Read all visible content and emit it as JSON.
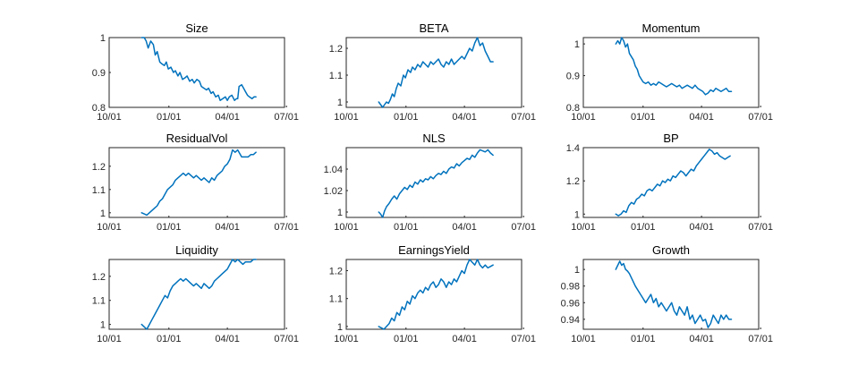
{
  "figure": {
    "line_color": "#0072BD"
  },
  "chart_data": [
    {
      "type": "line",
      "title": "Size",
      "xlabel": "",
      "ylabel": "",
      "xlim": [
        0,
        270
      ],
      "ylim": [
        0.8,
        1.0
      ],
      "xticks": [
        {
          "pos": 0,
          "label": "10/01"
        },
        {
          "pos": 92,
          "label": "01/01"
        },
        {
          "pos": 182,
          "label": "04/01"
        },
        {
          "pos": 273,
          "label": "07/01"
        }
      ],
      "yticks": [
        {
          "value": 0.8,
          "label": "0.8"
        },
        {
          "value": 0.9,
          "label": "0.9"
        },
        {
          "value": 1.0,
          "label": "1"
        }
      ],
      "x": [
        50,
        54,
        57,
        60,
        64,
        68,
        71,
        74,
        78,
        81,
        85,
        88,
        91,
        95,
        99,
        102,
        106,
        109,
        113,
        117,
        120,
        124,
        128,
        131,
        135,
        139,
        142,
        146,
        150,
        153,
        157,
        160,
        164,
        168,
        171,
        175,
        179,
        182,
        185,
        189,
        193,
        196,
        198,
        200,
        204,
        207,
        210,
        213,
        216,
        220,
        223,
        226
      ],
      "y": [
        1.0,
        1.0,
        0.99,
        0.97,
        0.99,
        0.98,
        0.95,
        0.96,
        0.93,
        0.925,
        0.92,
        0.93,
        0.91,
        0.915,
        0.9,
        0.905,
        0.89,
        0.9,
        0.88,
        0.885,
        0.89,
        0.875,
        0.88,
        0.87,
        0.88,
        0.875,
        0.86,
        0.855,
        0.85,
        0.855,
        0.84,
        0.845,
        0.83,
        0.835,
        0.82,
        0.825,
        0.83,
        0.82,
        0.83,
        0.835,
        0.82,
        0.825,
        0.825,
        0.86,
        0.865,
        0.855,
        0.845,
        0.835,
        0.83,
        0.825,
        0.83,
        0.83
      ]
    },
    {
      "type": "line",
      "title": "BETA",
      "xlabel": "",
      "ylabel": "",
      "xlim": [
        0,
        270
      ],
      "ylim": [
        0.98,
        1.24
      ],
      "xticks": [
        {
          "pos": 0,
          "label": "10/01"
        },
        {
          "pos": 92,
          "label": "01/01"
        },
        {
          "pos": 182,
          "label": "04/01"
        },
        {
          "pos": 273,
          "label": "07/01"
        }
      ],
      "yticks": [
        {
          "value": 1.0,
          "label": "1"
        },
        {
          "value": 1.1,
          "label": "1.1"
        },
        {
          "value": 1.2,
          "label": "1.2"
        }
      ],
      "x": [
        50,
        53,
        56,
        59,
        62,
        65,
        68,
        71,
        74,
        77,
        80,
        84,
        88,
        91,
        95,
        99,
        102,
        106,
        110,
        114,
        118,
        122,
        126,
        130,
        134,
        138,
        142,
        146,
        150,
        154,
        158,
        162,
        166,
        170,
        174,
        178,
        182,
        186,
        190,
        194,
        198,
        202,
        206,
        210,
        214,
        218,
        222,
        226
      ],
      "y": [
        1.0,
        0.99,
        0.98,
        0.99,
        1.0,
        0.995,
        1.01,
        1.03,
        1.02,
        1.05,
        1.07,
        1.06,
        1.1,
        1.09,
        1.12,
        1.11,
        1.13,
        1.12,
        1.14,
        1.13,
        1.15,
        1.14,
        1.13,
        1.15,
        1.14,
        1.15,
        1.16,
        1.14,
        1.13,
        1.15,
        1.14,
        1.16,
        1.14,
        1.15,
        1.16,
        1.17,
        1.16,
        1.18,
        1.2,
        1.19,
        1.22,
        1.24,
        1.21,
        1.22,
        1.19,
        1.17,
        1.15,
        1.15
      ]
    },
    {
      "type": "line",
      "title": "Momentum",
      "xlabel": "",
      "ylabel": "",
      "xlim": [
        0,
        270
      ],
      "ylim": [
        0.8,
        1.02
      ],
      "xticks": [
        {
          "pos": 0,
          "label": "10/01"
        },
        {
          "pos": 92,
          "label": "01/01"
        },
        {
          "pos": 182,
          "label": "04/01"
        },
        {
          "pos": 273,
          "label": "07/01"
        }
      ],
      "yticks": [
        {
          "value": 0.8,
          "label": "0.8"
        },
        {
          "value": 0.9,
          "label": "0.9"
        },
        {
          "value": 1.0,
          "label": "1"
        }
      ],
      "x": [
        50,
        53,
        56,
        59,
        62,
        65,
        68,
        71,
        74,
        77,
        80,
        83,
        86,
        89,
        92,
        96,
        100,
        104,
        108,
        112,
        116,
        120,
        124,
        128,
        132,
        136,
        140,
        144,
        148,
        152,
        156,
        160,
        164,
        168,
        172,
        176,
        180,
        184,
        188,
        192,
        196,
        200,
        204,
        208,
        212,
        216,
        220,
        224,
        228
      ],
      "y": [
        1.0,
        1.01,
        1.0,
        1.02,
        1.01,
        0.99,
        1.0,
        0.97,
        0.96,
        0.95,
        0.93,
        0.92,
        0.9,
        0.89,
        0.88,
        0.875,
        0.88,
        0.87,
        0.875,
        0.87,
        0.88,
        0.875,
        0.87,
        0.865,
        0.87,
        0.875,
        0.87,
        0.865,
        0.87,
        0.86,
        0.865,
        0.87,
        0.865,
        0.86,
        0.87,
        0.86,
        0.855,
        0.85,
        0.84,
        0.845,
        0.855,
        0.85,
        0.86,
        0.855,
        0.85,
        0.855,
        0.86,
        0.85,
        0.85
      ]
    },
    {
      "type": "line",
      "title": "ResidualVol",
      "xlabel": "",
      "ylabel": "",
      "xlim": [
        0,
        270
      ],
      "ylim": [
        0.98,
        1.28
      ],
      "xticks": [
        {
          "pos": 0,
          "label": "10/01"
        },
        {
          "pos": 92,
          "label": "01/01"
        },
        {
          "pos": 182,
          "label": "04/01"
        },
        {
          "pos": 273,
          "label": "07/01"
        }
      ],
      "yticks": [
        {
          "value": 1.0,
          "label": "1"
        },
        {
          "value": 1.1,
          "label": "1.1"
        },
        {
          "value": 1.2,
          "label": "1.2"
        }
      ],
      "x": [
        50,
        54,
        58,
        62,
        66,
        70,
        74,
        78,
        82,
        86,
        90,
        94,
        98,
        102,
        106,
        110,
        114,
        118,
        122,
        126,
        130,
        134,
        138,
        142,
        146,
        150,
        154,
        158,
        162,
        166,
        170,
        174,
        178,
        182,
        186,
        190,
        194,
        198,
        202,
        204,
        206,
        210,
        214,
        218,
        222,
        226
      ],
      "y": [
        1.0,
        0.995,
        0.99,
        1.0,
        1.01,
        1.02,
        1.03,
        1.05,
        1.06,
        1.08,
        1.1,
        1.11,
        1.12,
        1.14,
        1.15,
        1.16,
        1.17,
        1.16,
        1.17,
        1.16,
        1.15,
        1.16,
        1.15,
        1.14,
        1.15,
        1.14,
        1.13,
        1.15,
        1.14,
        1.16,
        1.17,
        1.18,
        1.2,
        1.21,
        1.23,
        1.27,
        1.26,
        1.27,
        1.25,
        1.24,
        1.24,
        1.24,
        1.24,
        1.25,
        1.25,
        1.26
      ]
    },
    {
      "type": "line",
      "title": "NLS",
      "xlabel": "",
      "ylabel": "",
      "xlim": [
        0,
        270
      ],
      "ylim": [
        0.995,
        1.06
      ],
      "xticks": [
        {
          "pos": 0,
          "label": "10/01"
        },
        {
          "pos": 92,
          "label": "01/01"
        },
        {
          "pos": 182,
          "label": "04/01"
        },
        {
          "pos": 273,
          "label": "07/01"
        }
      ],
      "yticks": [
        {
          "value": 1.0,
          "label": "1"
        },
        {
          "value": 1.02,
          "label": "1.02"
        },
        {
          "value": 1.04,
          "label": "1.04"
        }
      ],
      "x": [
        50,
        53,
        56,
        59,
        62,
        66,
        70,
        74,
        78,
        82,
        86,
        90,
        94,
        98,
        102,
        106,
        110,
        114,
        118,
        122,
        126,
        130,
        134,
        138,
        142,
        146,
        150,
        154,
        158,
        162,
        166,
        170,
        174,
        178,
        182,
        186,
        190,
        194,
        198,
        202,
        206,
        210,
        214,
        218,
        222,
        226
      ],
      "y": [
        1.0,
        0.998,
        0.995,
        1.001,
        1.005,
        1.008,
        1.012,
        1.015,
        1.012,
        1.017,
        1.02,
        1.023,
        1.021,
        1.025,
        1.023,
        1.028,
        1.026,
        1.03,
        1.028,
        1.031,
        1.03,
        1.033,
        1.031,
        1.034,
        1.036,
        1.035,
        1.038,
        1.036,
        1.04,
        1.042,
        1.041,
        1.045,
        1.043,
        1.046,
        1.048,
        1.05,
        1.049,
        1.053,
        1.051,
        1.055,
        1.058,
        1.057,
        1.056,
        1.058,
        1.055,
        1.053
      ]
    },
    {
      "type": "line",
      "title": "BP",
      "xlabel": "",
      "ylabel": "",
      "xlim": [
        0,
        270
      ],
      "ylim": [
        0.98,
        1.4
      ],
      "xticks": [
        {
          "pos": 0,
          "label": "10/01"
        },
        {
          "pos": 92,
          "label": "01/01"
        },
        {
          "pos": 182,
          "label": "04/01"
        },
        {
          "pos": 273,
          "label": "07/01"
        }
      ],
      "yticks": [
        {
          "value": 1.0,
          "label": "1"
        },
        {
          "value": 1.2,
          "label": "1.2"
        },
        {
          "value": 1.4,
          "label": "1.4"
        }
      ],
      "x": [
        50,
        54,
        58,
        62,
        66,
        70,
        74,
        78,
        82,
        86,
        90,
        94,
        98,
        102,
        106,
        110,
        114,
        118,
        122,
        126,
        130,
        134,
        138,
        142,
        146,
        150,
        154,
        158,
        162,
        166,
        170,
        174,
        178,
        182,
        186,
        190,
        194,
        198,
        202,
        206,
        210,
        214,
        218,
        222,
        226
      ],
      "y": [
        1.0,
        0.99,
        1.0,
        1.02,
        1.01,
        1.05,
        1.07,
        1.06,
        1.09,
        1.1,
        1.12,
        1.11,
        1.14,
        1.15,
        1.14,
        1.16,
        1.18,
        1.17,
        1.2,
        1.19,
        1.21,
        1.2,
        1.23,
        1.22,
        1.24,
        1.26,
        1.25,
        1.23,
        1.25,
        1.27,
        1.26,
        1.29,
        1.31,
        1.33,
        1.35,
        1.37,
        1.39,
        1.38,
        1.36,
        1.37,
        1.35,
        1.34,
        1.33,
        1.34,
        1.35
      ]
    },
    {
      "type": "line",
      "title": "Liquidity",
      "xlabel": "",
      "ylabel": "",
      "xlim": [
        0,
        270
      ],
      "ylim": [
        0.98,
        1.27
      ],
      "xticks": [
        {
          "pos": 0,
          "label": "10/01"
        },
        {
          "pos": 92,
          "label": "01/01"
        },
        {
          "pos": 182,
          "label": "04/01"
        },
        {
          "pos": 273,
          "label": "07/01"
        }
      ],
      "yticks": [
        {
          "value": 1.0,
          "label": "1"
        },
        {
          "value": 1.1,
          "label": "1.1"
        },
        {
          "value": 1.2,
          "label": "1.2"
        }
      ],
      "x": [
        50,
        54,
        58,
        62,
        66,
        70,
        74,
        78,
        82,
        86,
        90,
        94,
        98,
        102,
        106,
        110,
        114,
        118,
        122,
        126,
        130,
        134,
        138,
        142,
        146,
        150,
        154,
        158,
        162,
        166,
        170,
        174,
        178,
        182,
        186,
        190,
        194,
        198,
        202,
        206,
        210,
        214,
        218,
        222,
        226
      ],
      "y": [
        1.0,
        0.99,
        0.98,
        1.0,
        1.02,
        1.04,
        1.06,
        1.08,
        1.1,
        1.12,
        1.11,
        1.14,
        1.16,
        1.17,
        1.18,
        1.19,
        1.18,
        1.19,
        1.18,
        1.17,
        1.16,
        1.17,
        1.16,
        1.15,
        1.17,
        1.16,
        1.15,
        1.16,
        1.18,
        1.19,
        1.2,
        1.21,
        1.22,
        1.23,
        1.25,
        1.27,
        1.26,
        1.27,
        1.26,
        1.25,
        1.26,
        1.26,
        1.26,
        1.27,
        1.27
      ]
    },
    {
      "type": "line",
      "title": "EarningsYield",
      "xlabel": "",
      "ylabel": "",
      "xlim": [
        0,
        270
      ],
      "ylim": [
        0.99,
        1.24
      ],
      "xticks": [
        {
          "pos": 0,
          "label": "10/01"
        },
        {
          "pos": 92,
          "label": "01/01"
        },
        {
          "pos": 182,
          "label": "04/01"
        },
        {
          "pos": 273,
          "label": "07/01"
        }
      ],
      "yticks": [
        {
          "value": 1.0,
          "label": "1"
        },
        {
          "value": 1.1,
          "label": "1.1"
        },
        {
          "value": 1.2,
          "label": "1.2"
        }
      ],
      "x": [
        50,
        54,
        58,
        62,
        66,
        70,
        74,
        78,
        82,
        86,
        90,
        94,
        98,
        102,
        106,
        110,
        114,
        118,
        122,
        126,
        130,
        134,
        138,
        142,
        146,
        150,
        154,
        158,
        162,
        166,
        170,
        174,
        178,
        182,
        186,
        190,
        194,
        198,
        202,
        206,
        210,
        214,
        218,
        222,
        226
      ],
      "y": [
        1.0,
        0.995,
        0.99,
        1.0,
        1.01,
        1.03,
        1.02,
        1.05,
        1.04,
        1.07,
        1.06,
        1.09,
        1.08,
        1.11,
        1.1,
        1.12,
        1.13,
        1.12,
        1.14,
        1.13,
        1.15,
        1.16,
        1.14,
        1.15,
        1.17,
        1.16,
        1.14,
        1.16,
        1.15,
        1.17,
        1.16,
        1.18,
        1.2,
        1.19,
        1.22,
        1.24,
        1.23,
        1.22,
        1.24,
        1.22,
        1.21,
        1.22,
        1.21,
        1.215,
        1.22
      ]
    },
    {
      "type": "line",
      "title": "Growth",
      "xlabel": "",
      "ylabel": "",
      "xlim": [
        0,
        270
      ],
      "ylim": [
        0.928,
        1.012
      ],
      "xticks": [
        {
          "pos": 0,
          "label": "10/01"
        },
        {
          "pos": 92,
          "label": "01/01"
        },
        {
          "pos": 182,
          "label": "04/01"
        },
        {
          "pos": 273,
          "label": "07/01"
        }
      ],
      "yticks": [
        {
          "value": 0.94,
          "label": "0.94"
        },
        {
          "value": 0.96,
          "label": "0.96"
        },
        {
          "value": 0.98,
          "label": "0.98"
        },
        {
          "value": 1.0,
          "label": "1"
        }
      ],
      "x": [
        50,
        53,
        56,
        59,
        62,
        65,
        68,
        71,
        74,
        77,
        80,
        84,
        88,
        92,
        96,
        100,
        104,
        108,
        112,
        116,
        120,
        124,
        128,
        132,
        136,
        140,
        144,
        148,
        152,
        156,
        160,
        164,
        168,
        172,
        176,
        180,
        184,
        188,
        192,
        196,
        200,
        204,
        208,
        212,
        216,
        220,
        224,
        228
      ],
      "y": [
        1.0,
        1.005,
        1.01,
        1.005,
        1.007,
        1.0,
        0.998,
        0.995,
        0.99,
        0.985,
        0.98,
        0.975,
        0.97,
        0.965,
        0.96,
        0.965,
        0.97,
        0.96,
        0.965,
        0.955,
        0.96,
        0.955,
        0.95,
        0.955,
        0.96,
        0.95,
        0.945,
        0.955,
        0.95,
        0.945,
        0.955,
        0.94,
        0.945,
        0.935,
        0.94,
        0.945,
        0.938,
        0.94,
        0.93,
        0.935,
        0.945,
        0.94,
        0.935,
        0.945,
        0.94,
        0.945,
        0.94,
        0.94
      ]
    }
  ]
}
